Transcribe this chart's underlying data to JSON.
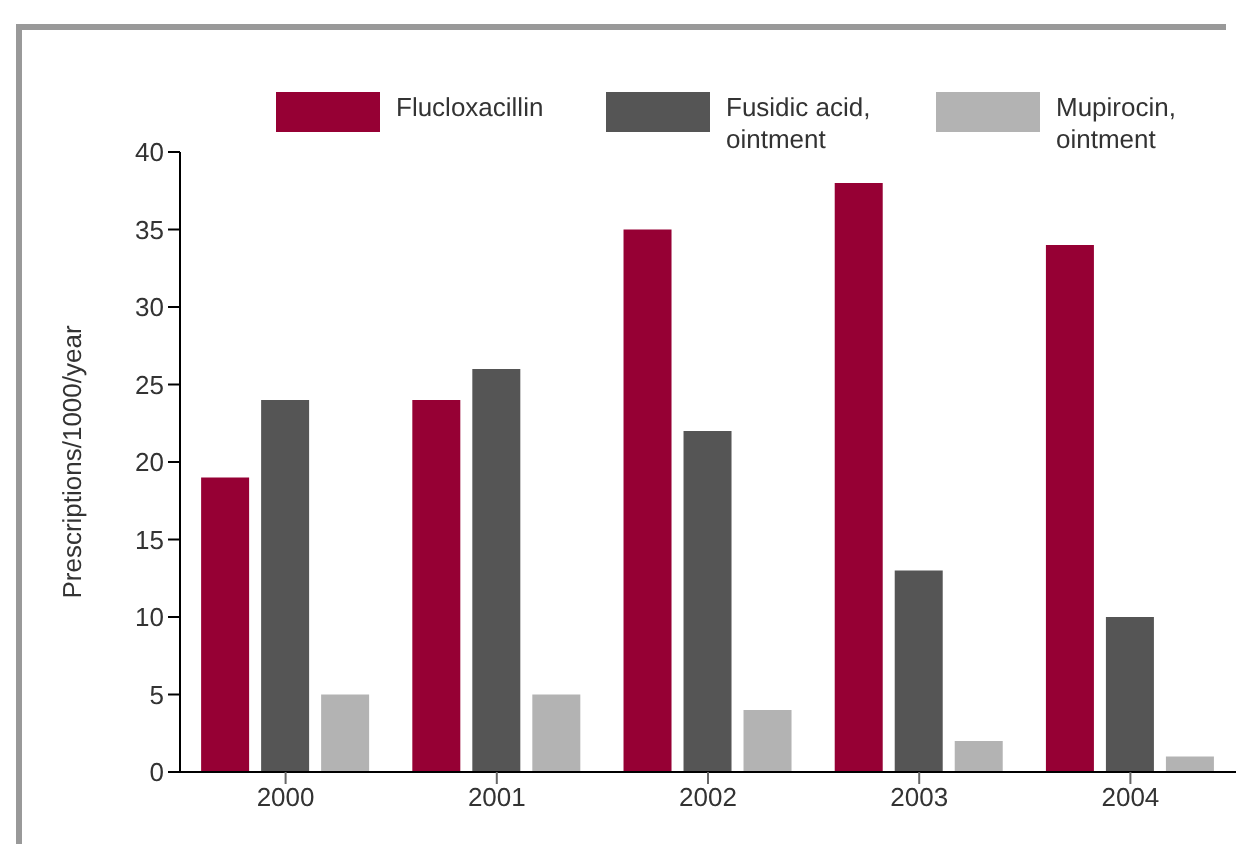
{
  "chart_data": {
    "type": "bar",
    "ylabel": "Prescriptions/1000/year",
    "categories": [
      "2000",
      "2001",
      "2002",
      "2003",
      "2004"
    ],
    "series": [
      {
        "name": "Flucloxacillin",
        "color": "#960034",
        "values": [
          19,
          24,
          35,
          38,
          34
        ]
      },
      {
        "name": "Fusidic acid, ointment",
        "color": "#555555",
        "values": [
          24,
          26,
          22,
          13,
          10
        ]
      },
      {
        "name": "Mupirocin, ointment",
        "color": "#b3b3b3",
        "values": [
          5,
          5,
          4,
          2,
          1
        ]
      }
    ],
    "ylim": [
      0,
      40
    ],
    "yticks": [
      0,
      5,
      10,
      15,
      20,
      25,
      30,
      35,
      40
    ],
    "legend": "top"
  }
}
